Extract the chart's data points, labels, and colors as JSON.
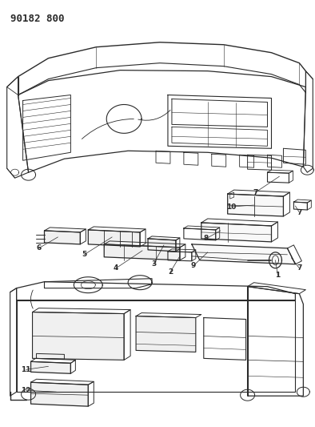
{
  "title": "90182 800",
  "bg_color": "#ffffff",
  "line_color": "#2a2a2a",
  "title_fontsize": 9,
  "figsize": [
    3.94,
    5.33
  ],
  "dpi": 100
}
